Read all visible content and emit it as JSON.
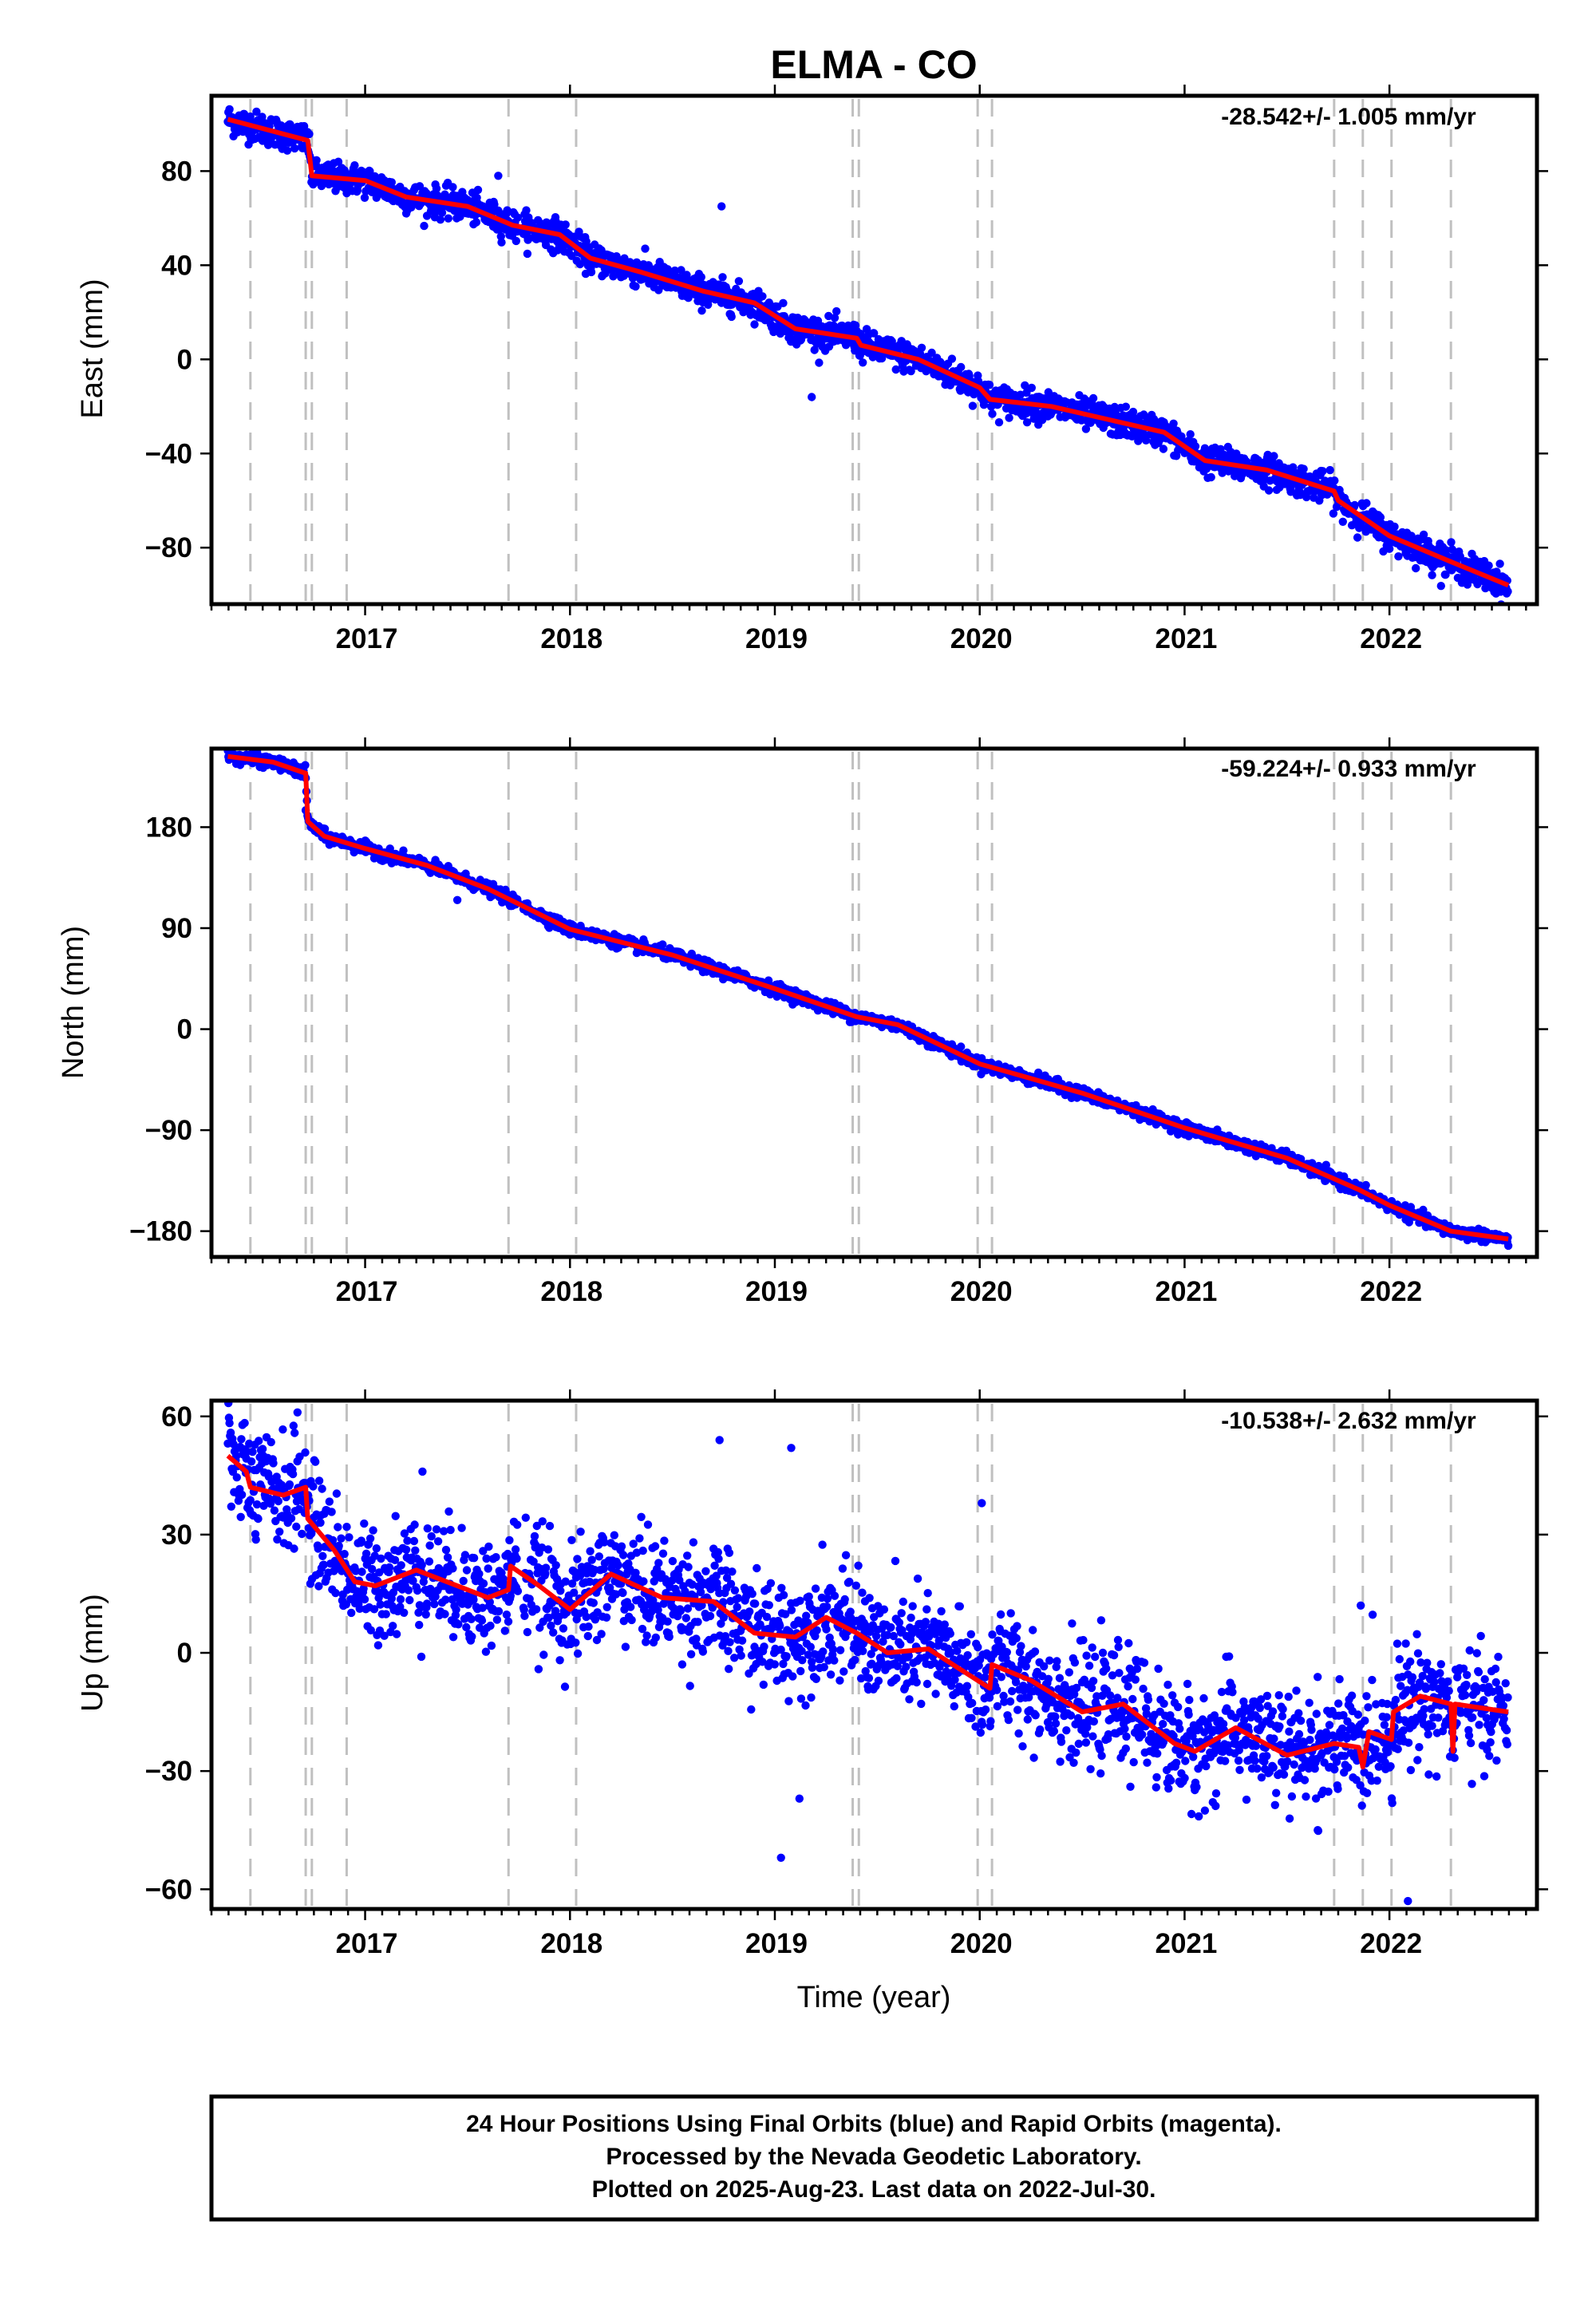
{
  "title": "ELMA - CO",
  "colors": {
    "observed": "#0000ff",
    "model": "#ff0000",
    "gap_lines": "#c0c0c0",
    "frame": "#000000"
  },
  "xlabel": "Time (year)",
  "caption": [
    "24 Hour Positions Using Final Orbits (blue) and Rapid Orbits (magenta).",
    "Processed by the Nevada Geodetic Laboratory.",
    "Plotted on 2025-Aug-23. Last data on 2022-Jul-30."
  ],
  "chart_data": [
    {
      "type": "scatter",
      "component": "east",
      "ylabel": "East (mm)",
      "rate_text": "-28.542+/- 1.005 mm/yr",
      "xlim": [
        2016.25,
        2022.72
      ],
      "ylim": [
        -104,
        112
      ],
      "xticks": [
        2017,
        2018,
        2019,
        2020,
        2021,
        2022
      ],
      "yticks": [
        80,
        40,
        0,
        -40,
        -80
      ],
      "ytick_labels": [
        "80",
        "40",
        "0",
        "−40",
        "−80"
      ],
      "gap_lines": [
        2016.44,
        2016.71,
        2016.74,
        2016.91,
        2017.7,
        2018.03,
        2019.38,
        2019.41,
        2019.99,
        2020.06,
        2021.73,
        2021.87,
        2022.01,
        2022.3
      ],
      "trend": {
        "rate": -28.542,
        "uncertainty": 1.005,
        "knots": [
          [
            2016.33,
            102
          ],
          [
            2016.72,
            93
          ],
          [
            2016.74,
            78
          ],
          [
            2017.0,
            76
          ],
          [
            2017.2,
            69
          ],
          [
            2017.5,
            65
          ],
          [
            2017.72,
            57
          ],
          [
            2017.95,
            53
          ],
          [
            2018.1,
            43
          ],
          [
            2018.35,
            37
          ],
          [
            2018.65,
            29
          ],
          [
            2018.9,
            24
          ],
          [
            2019.1,
            13
          ],
          [
            2019.4,
            9
          ],
          [
            2019.42,
            6
          ],
          [
            2019.7,
            0
          ],
          [
            2020.0,
            -12
          ],
          [
            2020.05,
            -17
          ],
          [
            2020.35,
            -20
          ],
          [
            2020.65,
            -26
          ],
          [
            2020.9,
            -31
          ],
          [
            2021.1,
            -43
          ],
          [
            2021.4,
            -47
          ],
          [
            2021.73,
            -56
          ],
          [
            2021.75,
            -60
          ],
          [
            2022.0,
            -75
          ],
          [
            2022.3,
            -86
          ],
          [
            2022.58,
            -96
          ]
        ]
      },
      "scatter_sigma": 3.2,
      "outliers": [
        [
          2017.65,
          78
        ],
        [
          2018.74,
          65
        ],
        [
          2019.18,
          -16
        ],
        [
          2019.4,
          12
        ]
      ]
    },
    {
      "type": "scatter",
      "component": "north",
      "ylabel": "North (mm)",
      "rate_text": "-59.224+/- 0.933 mm/yr",
      "xlim": [
        2016.25,
        2022.72
      ],
      "ylim": [
        -203,
        250
      ],
      "xticks": [
        2017,
        2018,
        2019,
        2020,
        2021,
        2022
      ],
      "yticks": [
        180,
        90,
        0,
        -90,
        -180
      ],
      "ytick_labels": [
        "180",
        "90",
        "0",
        "−90",
        "−180"
      ],
      "gap_lines": [
        2016.44,
        2016.71,
        2016.74,
        2016.91,
        2017.7,
        2018.03,
        2019.38,
        2019.41,
        2019.99,
        2020.06,
        2021.73,
        2021.87,
        2022.01,
        2022.3
      ],
      "trend": {
        "rate": -59.224,
        "uncertainty": 0.933,
        "knots": [
          [
            2016.33,
            243
          ],
          [
            2016.55,
            238
          ],
          [
            2016.71,
            228
          ],
          [
            2016.72,
            185
          ],
          [
            2016.8,
            172
          ],
          [
            2017.0,
            161
          ],
          [
            2017.3,
            146
          ],
          [
            2017.6,
            125
          ],
          [
            2018.0,
            89
          ],
          [
            2018.5,
            66
          ],
          [
            2019.0,
            36
          ],
          [
            2019.4,
            11
          ],
          [
            2019.6,
            4
          ],
          [
            2020.0,
            -31
          ],
          [
            2020.5,
            -57
          ],
          [
            2021.0,
            -88
          ],
          [
            2021.5,
            -115
          ],
          [
            2021.85,
            -143
          ],
          [
            2022.0,
            -157
          ],
          [
            2022.3,
            -180
          ],
          [
            2022.58,
            -187
          ]
        ]
      },
      "scatter_sigma": 2.6,
      "outliers": [
        [
          2016.71,
          195
        ],
        [
          2017.45,
          115
        ],
        [
          2022.58,
          -193
        ]
      ]
    },
    {
      "type": "scatter",
      "component": "up",
      "ylabel": "Up (mm)",
      "rate_text": "-10.538+/- 2.632 mm/yr",
      "xlim": [
        2016.25,
        2022.72
      ],
      "ylim": [
        -65,
        64
      ],
      "xticks": [
        2017,
        2018,
        2019,
        2020,
        2021,
        2022
      ],
      "yticks": [
        60,
        30,
        0,
        -30,
        -60
      ],
      "ytick_labels": [
        "60",
        "30",
        "0",
        "−30",
        "−60"
      ],
      "gap_lines": [
        2016.44,
        2016.71,
        2016.74,
        2016.91,
        2017.7,
        2018.03,
        2019.38,
        2019.41,
        2019.99,
        2020.06,
        2021.73,
        2021.87,
        2022.01,
        2022.3
      ],
      "trend": {
        "rate": -10.538,
        "uncertainty": 2.632,
        "knots": [
          [
            2016.33,
            50
          ],
          [
            2016.42,
            46
          ],
          [
            2016.44,
            42
          ],
          [
            2016.6,
            40
          ],
          [
            2016.71,
            42
          ],
          [
            2016.72,
            34
          ],
          [
            2016.85,
            26
          ],
          [
            2016.95,
            18
          ],
          [
            2017.05,
            17
          ],
          [
            2017.25,
            21
          ],
          [
            2017.45,
            17
          ],
          [
            2017.6,
            14
          ],
          [
            2017.7,
            16
          ],
          [
            2017.71,
            22
          ],
          [
            2017.85,
            17
          ],
          [
            2018.0,
            11
          ],
          [
            2018.2,
            20
          ],
          [
            2018.45,
            14
          ],
          [
            2018.7,
            13
          ],
          [
            2018.9,
            5
          ],
          [
            2019.1,
            4
          ],
          [
            2019.25,
            9
          ],
          [
            2019.4,
            5
          ],
          [
            2019.55,
            0
          ],
          [
            2019.75,
            1
          ],
          [
            2019.99,
            -7
          ],
          [
            2020.05,
            -9
          ],
          [
            2020.06,
            -3
          ],
          [
            2020.25,
            -7
          ],
          [
            2020.5,
            -15
          ],
          [
            2020.7,
            -13
          ],
          [
            2020.95,
            -23
          ],
          [
            2021.05,
            -25
          ],
          [
            2021.25,
            -19
          ],
          [
            2021.5,
            -26
          ],
          [
            2021.73,
            -23
          ],
          [
            2021.85,
            -24
          ],
          [
            2021.87,
            -29
          ],
          [
            2021.9,
            -20
          ],
          [
            2022.01,
            -22
          ],
          [
            2022.02,
            -15
          ],
          [
            2022.15,
            -11
          ],
          [
            2022.3,
            -13
          ],
          [
            2022.31,
            -25
          ],
          [
            2022.32,
            -13
          ],
          [
            2022.58,
            -15
          ]
        ]
      },
      "scatter_sigma": 7.0,
      "outliers": [
        [
          2016.67,
          61
        ],
        [
          2017.28,
          46
        ],
        [
          2018.73,
          54
        ],
        [
          2019.03,
          -52
        ],
        [
          2019.08,
          52
        ],
        [
          2019.12,
          -37
        ],
        [
          2020.01,
          38
        ],
        [
          2021.86,
          12
        ],
        [
          2022.09,
          -63
        ],
        [
          2021.65,
          -45
        ]
      ]
    }
  ]
}
